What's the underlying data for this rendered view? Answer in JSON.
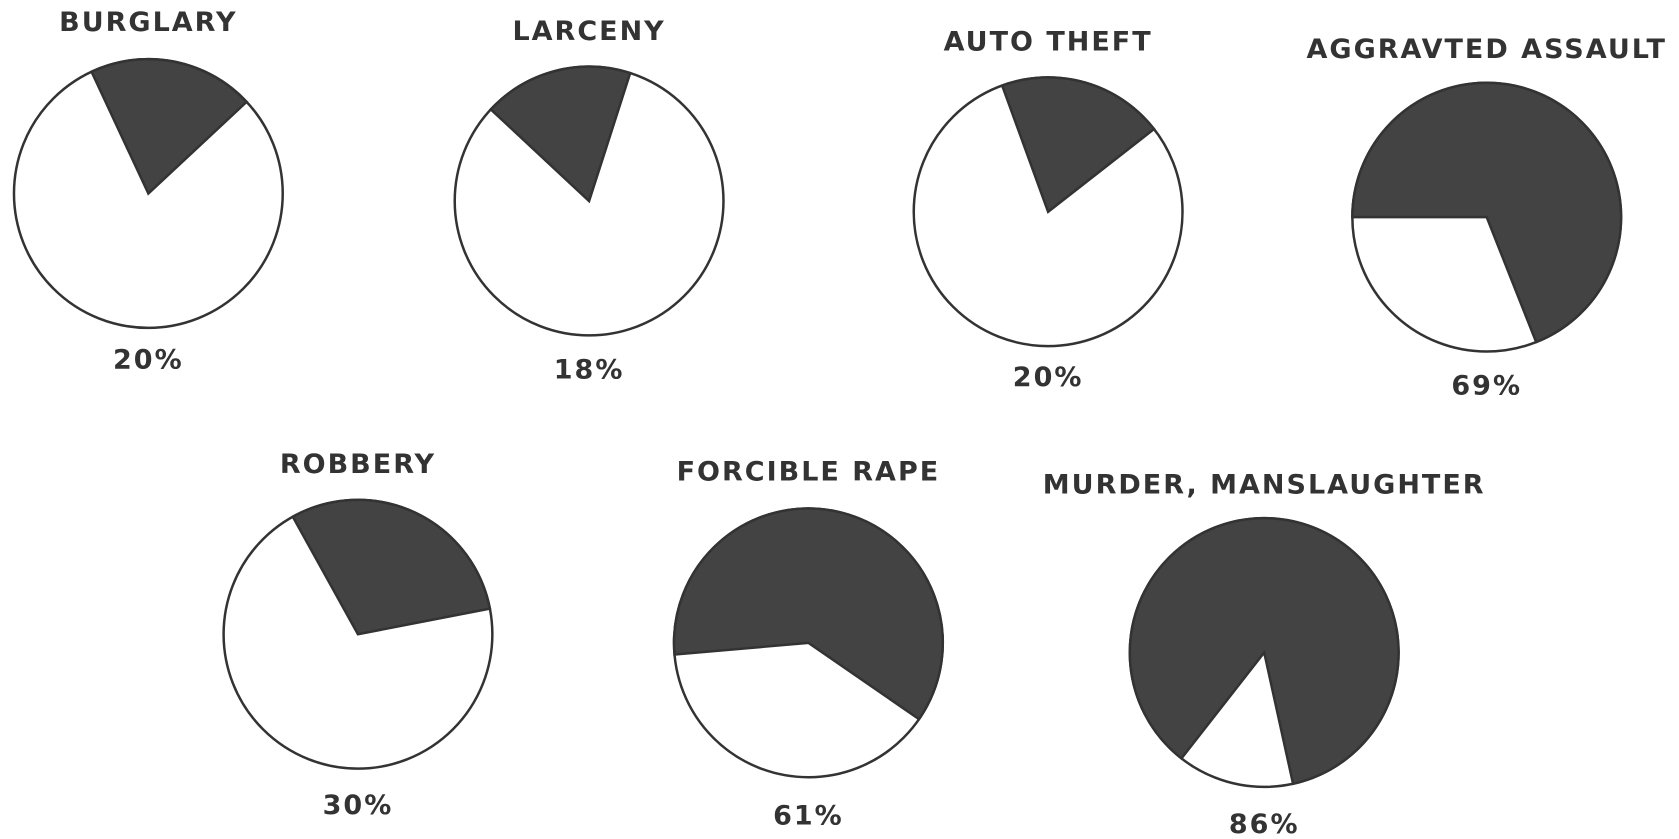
{
  "chart_data": [
    {
      "type": "pie",
      "title": "BURGLARY",
      "values": [
        20
      ],
      "value_labels": [
        "20%"
      ],
      "color": "#434343"
    },
    {
      "type": "pie",
      "title": "LARCENY",
      "values": [
        18
      ],
      "value_labels": [
        "18%"
      ],
      "color": "#434343"
    },
    {
      "type": "pie",
      "title": "AUTO THEFT",
      "values": [
        20
      ],
      "value_labels": [
        "20%"
      ],
      "color": "#434343"
    },
    {
      "type": "pie",
      "title": "AGGRAVTED ASSAULT",
      "values": [
        69
      ],
      "value_labels": [
        "69%"
      ],
      "color": "#434343"
    },
    {
      "type": "pie",
      "title": "ROBBERY",
      "values": [
        30
      ],
      "value_labels": [
        "30%"
      ],
      "color": "#434343"
    },
    {
      "type": "pie",
      "title": "FORCIBLE RAPE",
      "values": [
        61
      ],
      "value_labels": [
        "61%"
      ],
      "color": "#434343"
    },
    {
      "type": "pie",
      "title": "MURDER, MANSLAUGHTER",
      "values": [
        86
      ],
      "value_labels": [
        "86%"
      ],
      "color": "#434343"
    }
  ]
}
